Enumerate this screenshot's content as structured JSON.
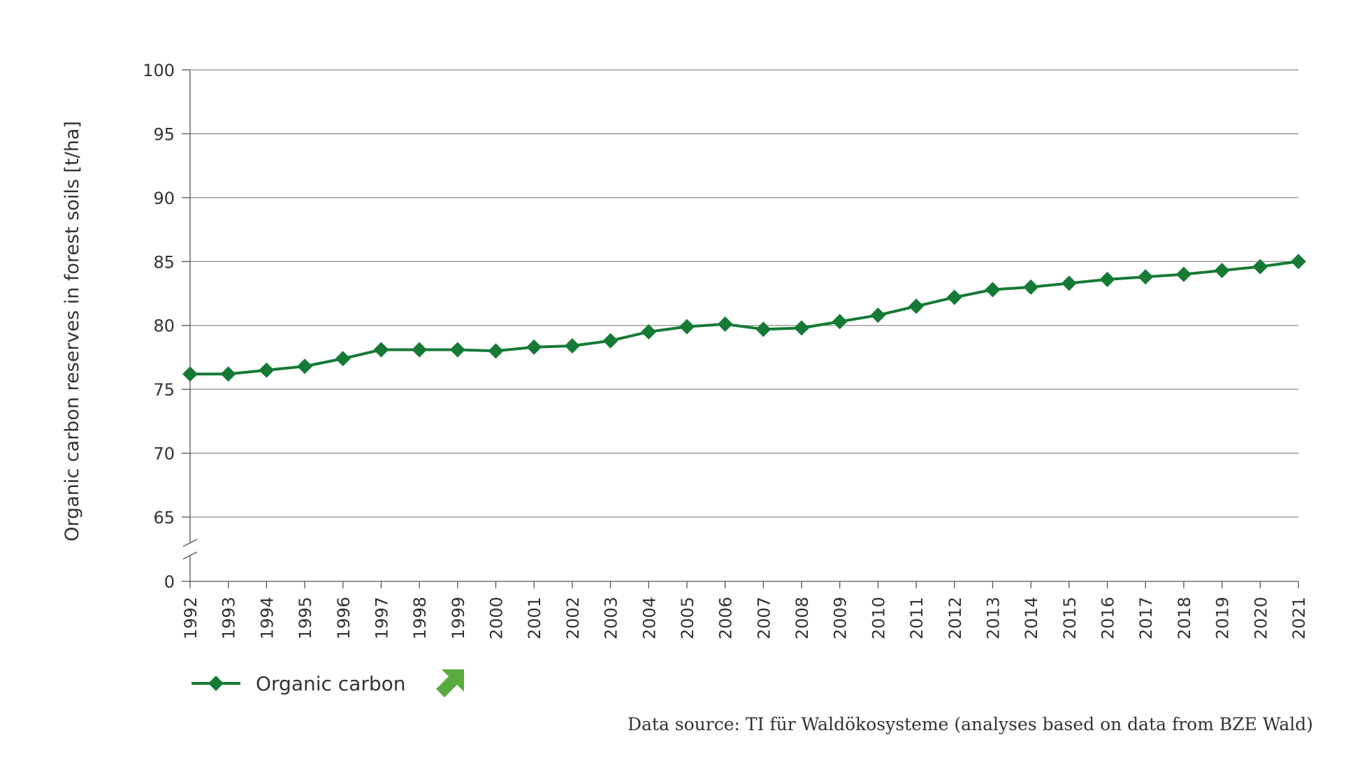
{
  "chart_data": {
    "type": "line",
    "ylabel": "Organic carbon reserves in forest soils [t/ha]",
    "xlabel": "",
    "x": [
      "1992",
      "1993",
      "1994",
      "1995",
      "1996",
      "1997",
      "1998",
      "1999",
      "2000",
      "2001",
      "2002",
      "2003",
      "2004",
      "2005",
      "2006",
      "2007",
      "2008",
      "2009",
      "2010",
      "2011",
      "2012",
      "2013",
      "2014",
      "2015",
      "2016",
      "2017",
      "2018",
      "2019",
      "2020",
      "2021"
    ],
    "series": [
      {
        "name": "Organic carbon",
        "color": "#157a35",
        "values": [
          76.2,
          76.2,
          76.5,
          76.8,
          77.4,
          78.1,
          78.1,
          78.1,
          78.0,
          78.3,
          78.4,
          78.8,
          79.5,
          79.9,
          80.1,
          79.7,
          79.8,
          80.3,
          80.8,
          81.5,
          82.2,
          82.8,
          83.0,
          83.3,
          83.6,
          83.8,
          84.0,
          84.3,
          84.6,
          85.0
        ]
      }
    ],
    "ylim": [
      65,
      100
    ],
    "yticks": [
      "0",
      "65",
      "70",
      "75",
      "80",
      "85",
      "90",
      "95",
      "100"
    ],
    "axis_break": "between 0 and 65",
    "grid": true,
    "legend_position": "bottom-left",
    "trend_indicator": {
      "name": "trend-up-arrow-icon",
      "color": "#5aab3d"
    }
  },
  "source_text": "Data source: TI für Waldökosysteme (analyses based on data from BZE Wald)"
}
